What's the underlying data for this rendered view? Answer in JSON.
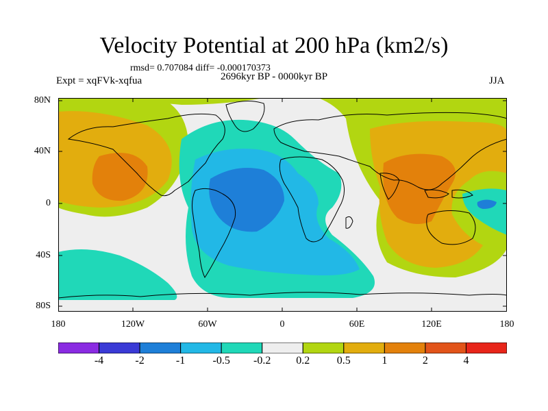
{
  "title": "Velocity Potential at 200 hPa (km2/s)",
  "stats": "rmsd= 0.707084 diff= -0.000170373",
  "experiment": "Expt = xqFVk-xqfua",
  "period": "2696kyr BP - 0000kyr BP",
  "season": "JJA",
  "map": {
    "lat_labels": [
      "80N",
      "40N",
      "0",
      "40S",
      "80S"
    ],
    "lon_labels": [
      "180",
      "120W",
      "60W",
      "0",
      "60E",
      "120E",
      "180"
    ]
  },
  "colorbar": {
    "colors": [
      "#8a2be2",
      "#3a3ad6",
      "#1e7fd8",
      "#22b8e6",
      "#20d8b8",
      "#eeeeee",
      "#b2d611",
      "#e2ad0e",
      "#e3810b",
      "#e2541a",
      "#e8251a"
    ],
    "labels": [
      "-4",
      "-2",
      "-1",
      "-0.5",
      "-0.2",
      "0.2",
      "0.5",
      "1",
      "2",
      "4"
    ]
  }
}
